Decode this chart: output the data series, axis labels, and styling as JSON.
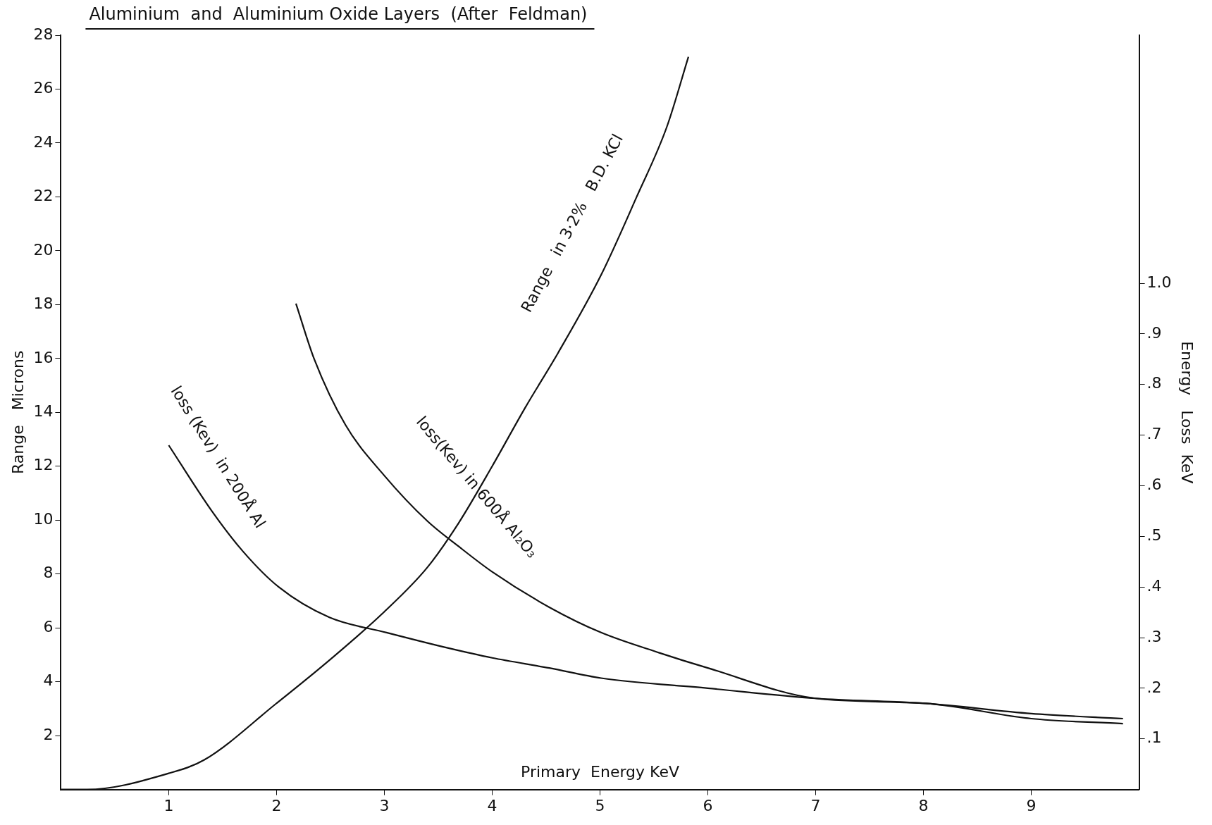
{
  "chart_data": {
    "type": "line",
    "title": "Aluminium  and  Aluminium Oxide Layers  (After  Feldman)",
    "xlabel": "Primary  Energy KeV",
    "ylabel": "Range   Microns",
    "y2label": "Energy   Loss  KeV",
    "xlim": [
      0,
      10
    ],
    "xticks": [
      1,
      2,
      3,
      4,
      5,
      6,
      7,
      8,
      9
    ],
    "ylim": [
      0,
      28
    ],
    "yticks": [
      2,
      4,
      6,
      8,
      10,
      12,
      14,
      16,
      18,
      20,
      22,
      24,
      26,
      28
    ],
    "y2lim": [
      0,
      1.49
    ],
    "y2ticks": [
      {
        "value": 0.1,
        "label": ".1"
      },
      {
        "value": 0.2,
        "label": ".2"
      },
      {
        "value": 0.3,
        "label": ".3"
      },
      {
        "value": 0.4,
        "label": ".4"
      },
      {
        "value": 0.5,
        "label": ".5"
      },
      {
        "value": 0.6,
        "label": ".6"
      },
      {
        "value": 0.7,
        "label": ".7"
      },
      {
        "value": 0.8,
        "label": ".8"
      },
      {
        "value": 0.9,
        "label": ".9"
      },
      {
        "value": 1.0,
        "label": "1.0"
      }
    ],
    "grid": false,
    "legend": false,
    "marker": "none",
    "line_style": "solid",
    "series": [
      {
        "color": "#111111",
        "x": [
          0,
          0.24,
          1.0,
          1.33,
          2.0,
          2.49,
          3.0,
          3.4,
          3.69,
          4.0,
          4.31,
          4.61,
          5.01,
          5.34,
          5.62,
          5.82
        ],
        "values": [
          0,
          0,
          0.6,
          1.1,
          3.2,
          4.8,
          6.6,
          8.25,
          9.9,
          12.0,
          14.2,
          16.2,
          19.1,
          22.0,
          24.6,
          27.2
        ]
      },
      {
        "color": "#111111",
        "axis": "y2",
        "x": [
          1.0,
          1.4,
          1.69,
          2.02,
          2.49,
          3.02,
          3.58,
          4.0,
          4.53,
          5.01,
          6.0,
          7.0,
          8.02,
          9.0,
          9.85
        ],
        "values": [
          0.68,
          0.55,
          0.47,
          0.4,
          0.34,
          0.31,
          0.28,
          0.26,
          0.24,
          0.22,
          0.2,
          0.18,
          0.17,
          0.15,
          0.14
        ]
      },
      {
        "color": "#111111",
        "axis": "y2",
        "x": [
          2.18,
          2.35,
          2.64,
          3.0,
          3.4,
          3.69,
          4.0,
          4.53,
          5.01,
          5.55,
          6.0,
          7.0,
          8.02,
          9.0,
          9.85
        ],
        "values": [
          0.96,
          0.85,
          0.72,
          0.62,
          0.53,
          0.48,
          0.43,
          0.36,
          0.31,
          0.27,
          0.24,
          0.18,
          0.17,
          0.14,
          0.13
        ]
      }
    ],
    "annotations": [
      "Range   in 3·2%   B.D. KCl",
      "loss (Kev)  in 200Å Al",
      "loss(Kev) in 600Å Al₂O₃"
    ]
  }
}
